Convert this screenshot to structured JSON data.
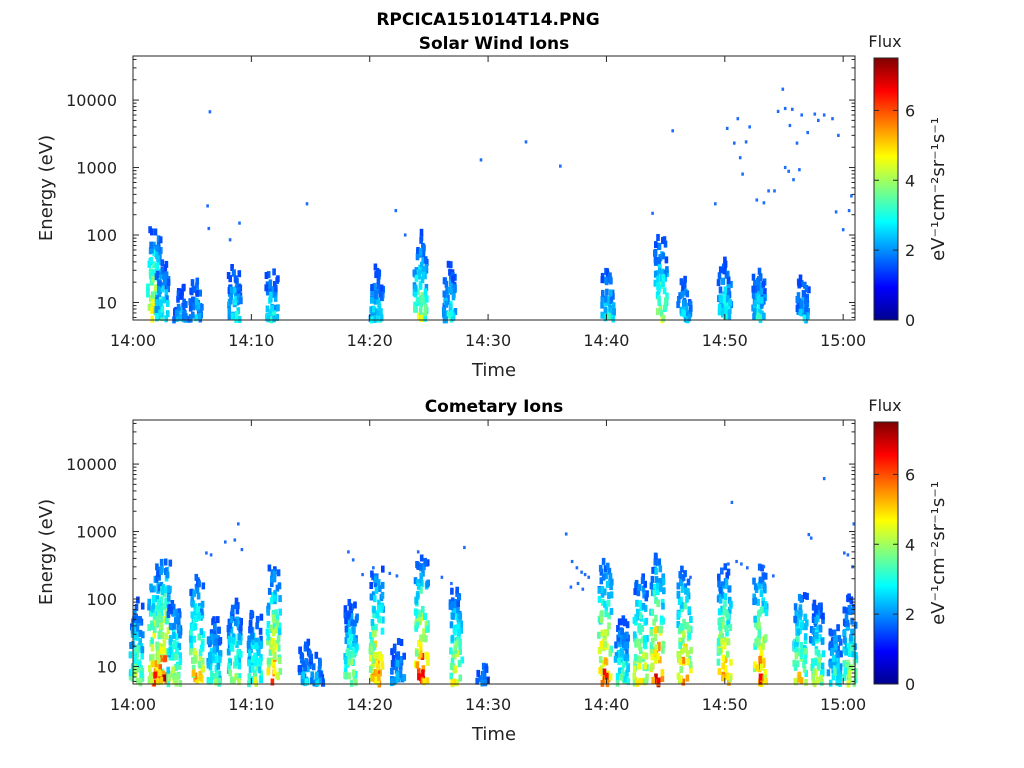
{
  "figure_title": "RPCICA151014T14.PNG",
  "chart_data": [
    {
      "type": "heatmap",
      "title": "Solar Wind Ions",
      "xlabel": "Time",
      "ylabel": "Energy (eV)",
      "xticks": [
        "14:00",
        "14:10",
        "14:20",
        "14:30",
        "14:40",
        "14:50",
        "15:00"
      ],
      "xlim": [
        "14:00",
        "15:01"
      ],
      "yscale": "log",
      "ylim": [
        5.5,
        45000
      ],
      "yticks": [
        10,
        100,
        1000,
        10000
      ],
      "yticklabels": [
        "10",
        "100",
        "1000",
        "10000"
      ],
      "colorbar": {
        "title": "Flux",
        "label": "eV⁻¹cm⁻²sr⁻¹s⁻¹",
        "range": [
          0,
          7.5
        ],
        "ticks": [
          "0",
          "2",
          "4",
          "6"
        ]
      },
      "bursts": [
        {
          "t": 1.8,
          "z": 5.3
        },
        {
          "t": 2.5,
          "z": 3.6
        },
        {
          "t": 4.0,
          "z": 2.5
        },
        {
          "t": 5.3,
          "z": 2.9
        },
        {
          "t": 8.6,
          "z": 3.3
        },
        {
          "t": 11.7,
          "z": 3.3
        },
        {
          "t": 20.6,
          "z": 3.3
        },
        {
          "t": 24.3,
          "z": 4.7
        },
        {
          "t": 26.8,
          "z": 3.3
        },
        {
          "t": 40.1,
          "z": 3.3
        },
        {
          "t": 44.6,
          "z": 4.7
        },
        {
          "t": 46.6,
          "z": 2.9
        },
        {
          "t": 50.0,
          "z": 3.6
        },
        {
          "t": 52.9,
          "z": 3.3
        },
        {
          "t": 56.6,
          "z": 2.9
        }
      ],
      "points": [
        {
          "t": 6.5,
          "e": 6700
        },
        {
          "t": 6.3,
          "e": 270
        },
        {
          "t": 6.4,
          "e": 125
        },
        {
          "t": 8.2,
          "e": 85
        },
        {
          "t": 9.0,
          "e": 150
        },
        {
          "t": 14.7,
          "e": 290
        },
        {
          "t": 22.2,
          "e": 230
        },
        {
          "t": 23.0,
          "e": 100
        },
        {
          "t": 29.4,
          "e": 1300
        },
        {
          "t": 33.2,
          "e": 2400
        },
        {
          "t": 36.1,
          "e": 1050
        },
        {
          "t": 43.9,
          "e": 210
        },
        {
          "t": 45.6,
          "e": 3500
        },
        {
          "t": 49.2,
          "e": 290
        },
        {
          "t": 50.2,
          "e": 3800
        },
        {
          "t": 51.1,
          "e": 5300
        },
        {
          "t": 51.8,
          "e": 2400
        },
        {
          "t": 50.8,
          "e": 2300
        },
        {
          "t": 51.3,
          "e": 1400
        },
        {
          "t": 51.5,
          "e": 800
        },
        {
          "t": 52.1,
          "e": 4000
        },
        {
          "t": 52.7,
          "e": 330
        },
        {
          "t": 53.3,
          "e": 300
        },
        {
          "t": 53.7,
          "e": 450
        },
        {
          "t": 54.2,
          "e": 450
        },
        {
          "t": 54.5,
          "e": 6800
        },
        {
          "t": 54.9,
          "e": 14500
        },
        {
          "t": 55.1,
          "e": 7500
        },
        {
          "t": 55.7,
          "e": 7300
        },
        {
          "t": 55.5,
          "e": 4200
        },
        {
          "t": 55.1,
          "e": 1000
        },
        {
          "t": 55.4,
          "e": 880
        },
        {
          "t": 55.8,
          "e": 660
        },
        {
          "t": 56.1,
          "e": 2300
        },
        {
          "t": 56.3,
          "e": 930
        },
        {
          "t": 56.5,
          "e": 6000
        },
        {
          "t": 57.0,
          "e": 3300
        },
        {
          "t": 57.6,
          "e": 6200
        },
        {
          "t": 57.9,
          "e": 5000
        },
        {
          "t": 58.4,
          "e": 6000
        },
        {
          "t": 59.1,
          "e": 5300
        },
        {
          "t": 59.6,
          "e": 3000
        },
        {
          "t": 60.7,
          "e": 380
        },
        {
          "t": 60.5,
          "e": 230
        },
        {
          "t": 59.4,
          "e": 220
        },
        {
          "t": 60.0,
          "e": 120
        }
      ]
    },
    {
      "type": "heatmap",
      "title": "Cometary Ions",
      "xlabel": "Time",
      "ylabel": "Energy (eV)",
      "xticks": [
        "14:00",
        "14:10",
        "14:20",
        "14:30",
        "14:40",
        "14:50",
        "15:00"
      ],
      "xlim": [
        "14:00",
        "15:01"
      ],
      "yscale": "log",
      "ylim": [
        5.5,
        45000
      ],
      "yticks": [
        10,
        100,
        1000,
        10000
      ],
      "yticklabels": [
        "10",
        "100",
        "1000",
        "10000"
      ],
      "colorbar": {
        "title": "Flux",
        "label": "eV⁻¹cm⁻²sr⁻¹s⁻¹",
        "range": [
          0,
          7.5
        ],
        "ticks": [
          "0",
          "2",
          "4",
          "6"
        ]
      },
      "bursts": [
        {
          "t": 0.3,
          "z": 4.7
        },
        {
          "t": 1.9,
          "z": 6.4
        },
        {
          "t": 2.6,
          "z": 7.1
        },
        {
          "t": 3.5,
          "z": 4.7
        },
        {
          "t": 5.4,
          "z": 5.9
        },
        {
          "t": 6.9,
          "z": 3.9
        },
        {
          "t": 8.6,
          "z": 4.7
        },
        {
          "t": 10.3,
          "z": 4.3
        },
        {
          "t": 11.9,
          "z": 6.4
        },
        {
          "t": 14.6,
          "z": 2.9
        },
        {
          "t": 15.6,
          "z": 2.5
        },
        {
          "t": 18.4,
          "z": 4.7
        },
        {
          "t": 20.6,
          "z": 6.4
        },
        {
          "t": 22.4,
          "z": 2.9
        },
        {
          "t": 24.4,
          "z": 7.1
        },
        {
          "t": 27.3,
          "z": 5.3
        },
        {
          "t": 29.6,
          "z": 2.1
        },
        {
          "t": 39.9,
          "z": 6.8
        },
        {
          "t": 41.3,
          "z": 3.9
        },
        {
          "t": 42.9,
          "z": 5.9
        },
        {
          "t": 44.3,
          "z": 7.1
        },
        {
          "t": 46.6,
          "z": 6.4
        },
        {
          "t": 50.0,
          "z": 6.4
        },
        {
          "t": 53.0,
          "z": 6.4
        },
        {
          "t": 56.4,
          "z": 5.3
        },
        {
          "t": 57.8,
          "z": 4.7
        },
        {
          "t": 59.3,
          "z": 3.6
        },
        {
          "t": 60.6,
          "z": 4.7
        }
      ],
      "points": [
        {
          "t": 6.2,
          "e": 480
        },
        {
          "t": 6.6,
          "e": 450
        },
        {
          "t": 7.8,
          "e": 700
        },
        {
          "t": 8.9,
          "e": 1300
        },
        {
          "t": 8.6,
          "e": 750
        },
        {
          "t": 9.2,
          "e": 540
        },
        {
          "t": 18.2,
          "e": 500
        },
        {
          "t": 18.6,
          "e": 380
        },
        {
          "t": 19.4,
          "e": 230
        },
        {
          "t": 20.3,
          "e": 290
        },
        {
          "t": 21.7,
          "e": 240
        },
        {
          "t": 22.3,
          "e": 220
        },
        {
          "t": 24.1,
          "e": 500
        },
        {
          "t": 26.1,
          "e": 210
        },
        {
          "t": 26.9,
          "e": 170
        },
        {
          "t": 28.0,
          "e": 580
        },
        {
          "t": 36.6,
          "e": 920
        },
        {
          "t": 37.1,
          "e": 360
        },
        {
          "t": 37.5,
          "e": 290
        },
        {
          "t": 37.9,
          "e": 250
        },
        {
          "t": 38.2,
          "e": 230
        },
        {
          "t": 38.5,
          "e": 210
        },
        {
          "t": 37.6,
          "e": 170
        },
        {
          "t": 37.0,
          "e": 150
        },
        {
          "t": 38.0,
          "e": 140
        },
        {
          "t": 47.1,
          "e": 210
        },
        {
          "t": 50.6,
          "e": 2700
        },
        {
          "t": 51.0,
          "e": 360
        },
        {
          "t": 51.4,
          "e": 330
        },
        {
          "t": 51.9,
          "e": 290
        },
        {
          "t": 50.3,
          "e": 330
        },
        {
          "t": 49.7,
          "e": 260
        },
        {
          "t": 53.3,
          "e": 300
        },
        {
          "t": 54.1,
          "e": 220
        },
        {
          "t": 57.1,
          "e": 900
        },
        {
          "t": 57.3,
          "e": 800
        },
        {
          "t": 58.4,
          "e": 6100
        },
        {
          "t": 60.1,
          "e": 480
        },
        {
          "t": 60.4,
          "e": 450
        },
        {
          "t": 60.8,
          "e": 300
        },
        {
          "t": 60.9,
          "e": 1300
        }
      ]
    }
  ]
}
